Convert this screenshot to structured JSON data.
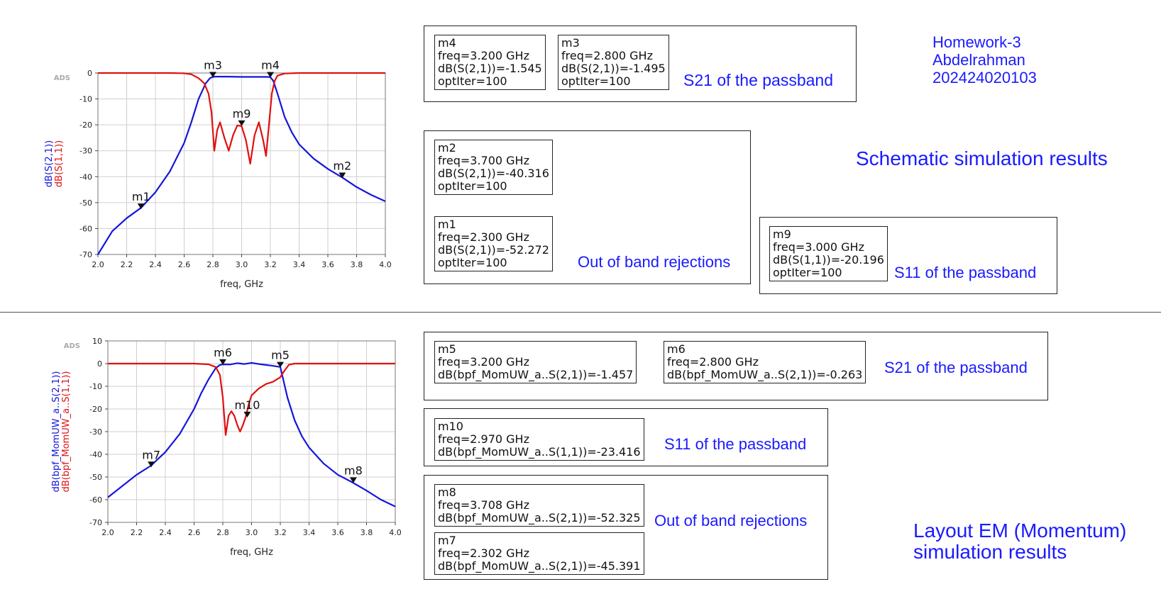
{
  "chart_data": [
    {
      "type": "line",
      "ads_tag": "ADS",
      "xlabel": "freq, GHz",
      "ylabels": [
        "dB(S(2,1))",
        "dB(S(1,1))"
      ],
      "xlim": [
        2.0,
        4.0
      ],
      "ylim": [
        -70,
        0
      ],
      "xticks": [
        "2.0",
        "2.2",
        "2.4",
        "2.6",
        "2.8",
        "3.0",
        "3.2",
        "3.4",
        "3.6",
        "3.8",
        "4.0"
      ],
      "yticks": [
        "0",
        "-10",
        "-20",
        "-30",
        "-40",
        "-50",
        "-60",
        "-70"
      ],
      "grid": true,
      "series": [
        {
          "name": "dB(S(2,1))",
          "color": "#1515dd",
          "x": [
            2.0,
            2.1,
            2.2,
            2.3,
            2.4,
            2.5,
            2.6,
            2.65,
            2.7,
            2.75,
            2.78,
            2.8,
            2.82,
            2.85,
            2.9,
            3.0,
            3.1,
            3.15,
            3.18,
            3.2,
            3.22,
            3.25,
            3.3,
            3.35,
            3.4,
            3.5,
            3.6,
            3.7,
            3.8,
            3.9,
            4.0
          ],
          "y": [
            -70,
            -61,
            -56,
            -52,
            -46,
            -38,
            -27,
            -19,
            -10,
            -4,
            -2,
            -1.5,
            -1.4,
            -1.4,
            -1.4,
            -1.5,
            -1.5,
            -1.5,
            -1.5,
            -1.6,
            -3,
            -8,
            -17,
            -23,
            -27.5,
            -33,
            -37,
            -40.3,
            -44,
            -47,
            -49.5
          ]
        },
        {
          "name": "dB(S(1,1))",
          "color": "#e01010",
          "x": [
            2.0,
            2.5,
            2.6,
            2.65,
            2.7,
            2.74,
            2.77,
            2.79,
            2.81,
            2.83,
            2.85,
            2.88,
            2.91,
            2.94,
            2.97,
            3.0,
            3.03,
            3.06,
            3.09,
            3.12,
            3.15,
            3.17,
            3.19,
            3.21,
            3.23,
            3.25,
            3.3,
            3.4,
            3.5,
            4.0
          ],
          "y": [
            0,
            0,
            -0.1,
            -0.5,
            -2,
            -4,
            -8,
            -15,
            -30,
            -22,
            -19,
            -25,
            -30,
            -24,
            -20.2,
            -20.5,
            -26,
            -35,
            -24,
            -19,
            -26,
            -32,
            -20,
            -8,
            -3,
            -1,
            -0.2,
            0,
            0,
            0
          ]
        }
      ],
      "markers": [
        {
          "label": "m1",
          "x": 2.3,
          "y": -52.272
        },
        {
          "label": "m2",
          "x": 3.7,
          "y": -40.316
        },
        {
          "label": "m3",
          "x": 2.8,
          "y": -1.495
        },
        {
          "label": "m4",
          "x": 3.2,
          "y": -1.545
        },
        {
          "label": "m9",
          "x": 3.0,
          "y": -20.196
        }
      ]
    },
    {
      "type": "line",
      "ads_tag": "ADS",
      "xlabel": "freq, GHz",
      "ylabels": [
        "dB(bpf_MomUW_a..S(2,1))",
        "dB(bpf_MomUW_a..S(1,1))"
      ],
      "xlim": [
        2.0,
        4.0
      ],
      "ylim": [
        -70,
        10
      ],
      "xticks": [
        "2.0",
        "2.2",
        "2.4",
        "2.6",
        "2.8",
        "3.0",
        "3.2",
        "3.4",
        "3.6",
        "3.8",
        "4.0"
      ],
      "yticks": [
        "10",
        "0",
        "-10",
        "-20",
        "-30",
        "-40",
        "-50",
        "-60",
        "-70"
      ],
      "grid": true,
      "series": [
        {
          "name": "dB(bpf_MomUW_a..S(2,1))",
          "color": "#1515dd",
          "x": [
            2.0,
            2.1,
            2.2,
            2.3,
            2.4,
            2.5,
            2.6,
            2.65,
            2.7,
            2.75,
            2.78,
            2.8,
            2.85,
            2.9,
            2.95,
            3.0,
            3.05,
            3.1,
            3.15,
            3.2,
            3.22,
            3.25,
            3.3,
            3.35,
            3.4,
            3.5,
            3.6,
            3.7,
            3.8,
            3.9,
            4.0
          ],
          "y": [
            -59,
            -54,
            -49,
            -45,
            -39,
            -31,
            -20,
            -13,
            -7,
            -2,
            -0.6,
            -0.3,
            -0.4,
            0.2,
            -0.2,
            0.3,
            -0.2,
            -0.6,
            -1,
            -1.5,
            -7,
            -15,
            -25,
            -32,
            -37,
            -44,
            -49,
            -52.3,
            -56,
            -60,
            -63
          ]
        },
        {
          "name": "dB(bpf_MomUW_a..S(1,1))",
          "color": "#e01010",
          "x": [
            2.0,
            2.6,
            2.7,
            2.75,
            2.78,
            2.8,
            2.82,
            2.84,
            2.86,
            2.88,
            2.9,
            2.92,
            2.94,
            2.96,
            2.98,
            3.0,
            3.05,
            3.1,
            3.15,
            3.2,
            3.23,
            3.26,
            3.3,
            3.4,
            4.0
          ],
          "y": [
            0,
            0,
            -0.3,
            -1.5,
            -5,
            -15,
            -31.5,
            -23,
            -21,
            -23,
            -27,
            -30,
            -27,
            -23.4,
            -18,
            -14,
            -11,
            -9,
            -8,
            -6,
            -3,
            -0.5,
            0,
            0,
            0
          ]
        }
      ],
      "markers": [
        {
          "label": "m5",
          "x": 3.2,
          "y": -1.457
        },
        {
          "label": "m6",
          "x": 2.8,
          "y": -0.263
        },
        {
          "label": "m7",
          "x": 2.302,
          "y": -45.391
        },
        {
          "label": "m8",
          "x": 3.708,
          "y": -52.325
        },
        {
          "label": "m10",
          "x": 2.97,
          "y": -23.416
        }
      ]
    }
  ],
  "readouts": {
    "m4": [
      "m4",
      "freq=3.200 GHz",
      "dB(S(2,1))=-1.545",
      "optIter=100"
    ],
    "m3": [
      "m3",
      "freq=2.800 GHz",
      "dB(S(2,1))=-1.495",
      "optIter=100"
    ],
    "m2": [
      "m2",
      "freq=3.700 GHz",
      "dB(S(2,1))=-40.316",
      "optIter=100"
    ],
    "m1": [
      "m1",
      "freq=2.300 GHz",
      "dB(S(2,1))=-52.272",
      "optIter=100"
    ],
    "m9": [
      "m9",
      "freq=3.000 GHz",
      "dB(S(1,1))=-20.196",
      "optIter=100"
    ],
    "m5": [
      "m5",
      "freq=3.200 GHz",
      "dB(bpf_MomUW_a..S(2,1))=-1.457"
    ],
    "m6": [
      "m6",
      "freq=2.800 GHz",
      "dB(bpf_MomUW_a..S(2,1))=-0.263"
    ],
    "m10": [
      "m10",
      "freq=2.970 GHz",
      "dB(bpf_MomUW_a..S(1,1))=-23.416"
    ],
    "m8": [
      "m8",
      "freq=3.708 GHz",
      "dB(bpf_MomUW_a..S(2,1))=-52.325"
    ],
    "m7": [
      "m7",
      "freq=2.302 GHz",
      "dB(bpf_MomUW_a..S(2,1))=-45.391"
    ]
  },
  "notes": {
    "s21_passband_top": "S21 of the passband",
    "out_of_band_top": "Out of band rejections",
    "s11_passband_top": "S11 of the passband",
    "s21_passband_bottom": "S21 of the passband",
    "s11_passband_bottom": "S11 of the passband",
    "out_of_band_bottom": "Out of band rejections",
    "homework": [
      "Homework-3",
      "Abdelrahman",
      "202424020103"
    ],
    "schematic_title": "Schematic simulation results",
    "layout_title": [
      "Layout EM (Momentum)",
      "simulation results"
    ]
  }
}
